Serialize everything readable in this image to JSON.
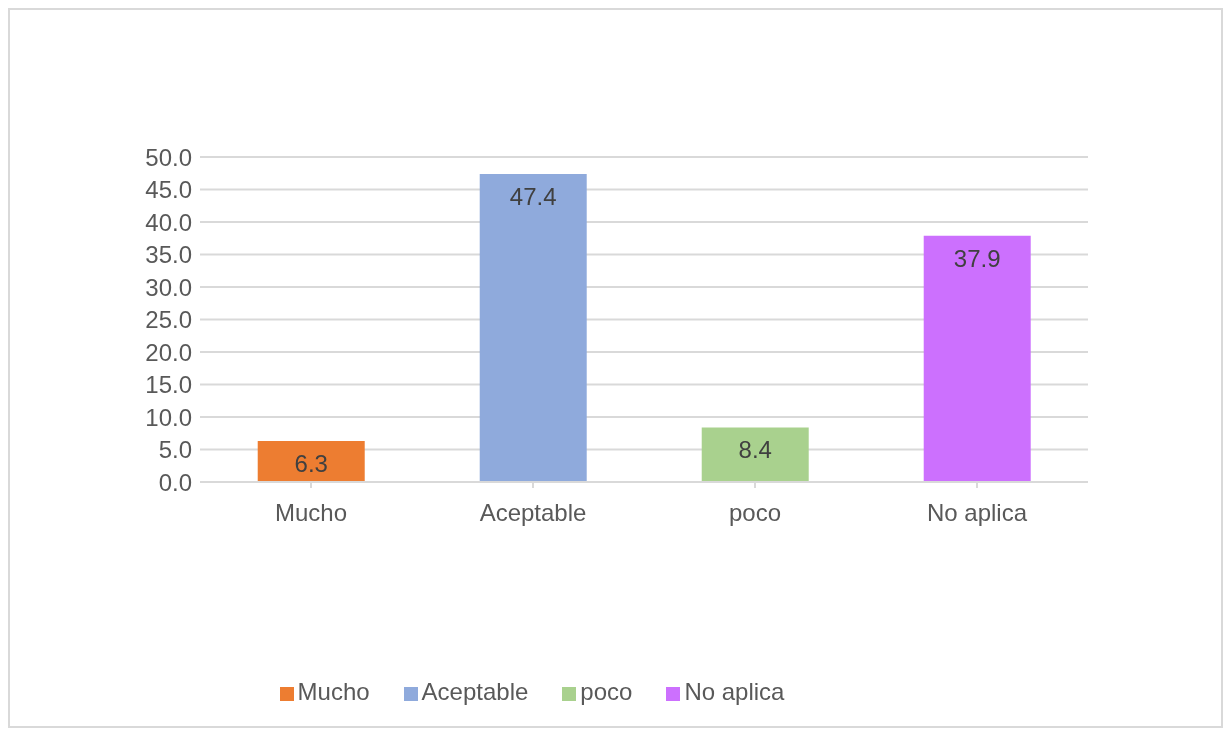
{
  "chart_data": {
    "type": "bar",
    "categories": [
      "Mucho",
      "Aceptable",
      "poco",
      "No aplica"
    ],
    "series": [
      {
        "name": "Mucho",
        "color": "#ed7d31",
        "values": [
          6.3,
          null,
          null,
          null
        ]
      },
      {
        "name": "Aceptable",
        "color": "#8faadc",
        "values": [
          null,
          47.4,
          null,
          null
        ]
      },
      {
        "name": "poco",
        "color": "#a9d18e",
        "values": [
          null,
          null,
          8.4,
          null
        ]
      },
      {
        "name": "No aplica",
        "color": "#cc70fe",
        "values": [
          null,
          null,
          null,
          37.9
        ]
      }
    ],
    "stacked": true,
    "ylim": [
      0,
      50
    ],
    "yticks": [
      {
        "value": 0,
        "label": "0.0"
      },
      {
        "value": 5,
        "label": "5.0"
      },
      {
        "value": 10,
        "label": "10.0"
      },
      {
        "value": 15,
        "label": "15.0"
      },
      {
        "value": 20,
        "label": "20.0"
      },
      {
        "value": 25,
        "label": "25.0"
      },
      {
        "value": 30,
        "label": "30.0"
      },
      {
        "value": 35,
        "label": "35.0"
      },
      {
        "value": 40,
        "label": "40.0"
      },
      {
        "value": 45,
        "label": "45.0"
      },
      {
        "value": 50,
        "label": "50.0"
      }
    ],
    "grid": "y",
    "legend": "bottom",
    "data_labels": true
  }
}
